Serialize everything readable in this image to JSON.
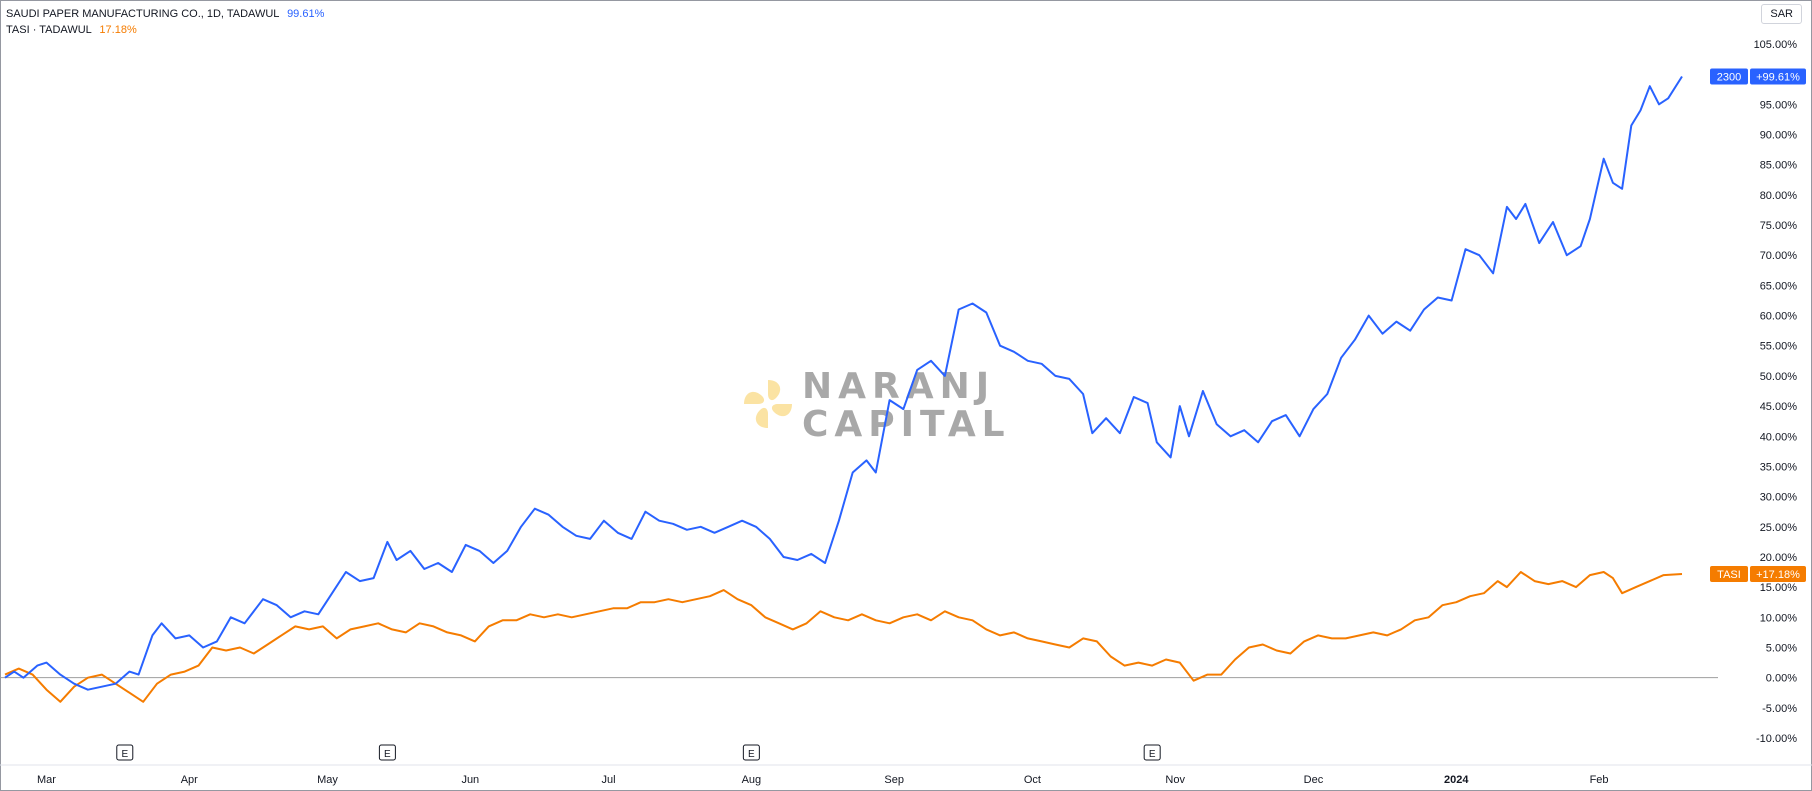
{
  "legend": {
    "row1": {
      "name": "SAUDI PAPER MANUFACTURING CO., 1D, TADAWUL",
      "pct": "99.61%"
    },
    "row2": {
      "name": "TASI · TADAWUL",
      "pct": "17.18%"
    }
  },
  "currency_label": "SAR",
  "watermark": {
    "line1": "NARANJ",
    "line2": "CAPITAL"
  },
  "colors": {
    "series_a": "#2962ff",
    "series_b": "#f57c00",
    "zero_line": "#9e9e9e",
    "logo": "#fbe3a3"
  },
  "earnings_marker_label": "E",
  "chart_data": {
    "type": "line",
    "y_unit": "%",
    "ylim": [
      -10,
      105
    ],
    "y_ticks": [
      "105.00%",
      "100.00%",
      "95.00%",
      "90.00%",
      "85.00%",
      "80.00%",
      "75.00%",
      "70.00%",
      "65.00%",
      "60.00%",
      "55.00%",
      "50.00%",
      "45.00%",
      "40.00%",
      "35.00%",
      "30.00%",
      "25.00%",
      "20.00%",
      "15.00%",
      "10.00%",
      "5.00%",
      "0.00%",
      "-5.00%",
      "-10.00%"
    ],
    "x_range": [
      "2023-02-20",
      "2024-02-19"
    ],
    "x_ticks": [
      {
        "label": "Mar",
        "date": "2023-03-01",
        "bold": false
      },
      {
        "label": "Apr",
        "date": "2023-04-01",
        "bold": false
      },
      {
        "label": "May",
        "date": "2023-05-01",
        "bold": false
      },
      {
        "label": "Jun",
        "date": "2023-06-01",
        "bold": false
      },
      {
        "label": "Jul",
        "date": "2023-07-01",
        "bold": false
      },
      {
        "label": "Aug",
        "date": "2023-08-01",
        "bold": false
      },
      {
        "label": "Sep",
        "date": "2023-09-01",
        "bold": false
      },
      {
        "label": "Oct",
        "date": "2023-10-01",
        "bold": false
      },
      {
        "label": "Nov",
        "date": "2023-11-01",
        "bold": false
      },
      {
        "label": "Dec",
        "date": "2023-12-01",
        "bold": false
      },
      {
        "label": "2024",
        "date": "2024-01-01",
        "bold": true
      },
      {
        "label": "Feb",
        "date": "2024-02-01",
        "bold": false
      }
    ],
    "earnings_dates": [
      "2023-03-18",
      "2023-05-14",
      "2023-08-01",
      "2023-10-27"
    ],
    "series": [
      {
        "name": "2300",
        "badge_value": "+99.61%",
        "last": 99.61,
        "points": [
          [
            "2023-02-20",
            0.0
          ],
          [
            "2023-02-22",
            1.0
          ],
          [
            "2023-02-24",
            0.0
          ],
          [
            "2023-02-27",
            2.0
          ],
          [
            "2023-03-01",
            2.5
          ],
          [
            "2023-03-04",
            0.5
          ],
          [
            "2023-03-07",
            -1.0
          ],
          [
            "2023-03-10",
            -2.0
          ],
          [
            "2023-03-13",
            -1.5
          ],
          [
            "2023-03-16",
            -1.0
          ],
          [
            "2023-03-19",
            1.0
          ],
          [
            "2023-03-21",
            0.5
          ],
          [
            "2023-03-24",
            7.0
          ],
          [
            "2023-03-26",
            9.0
          ],
          [
            "2023-03-29",
            6.5
          ],
          [
            "2023-04-01",
            7.0
          ],
          [
            "2023-04-04",
            5.0
          ],
          [
            "2023-04-07",
            6.0
          ],
          [
            "2023-04-10",
            10.0
          ],
          [
            "2023-04-13",
            9.0
          ],
          [
            "2023-04-17",
            13.0
          ],
          [
            "2023-04-20",
            12.0
          ],
          [
            "2023-04-23",
            10.0
          ],
          [
            "2023-04-26",
            11.0
          ],
          [
            "2023-04-29",
            10.5
          ],
          [
            "2023-05-02",
            14.0
          ],
          [
            "2023-05-05",
            17.5
          ],
          [
            "2023-05-08",
            16.0
          ],
          [
            "2023-05-11",
            16.5
          ],
          [
            "2023-05-14",
            22.5
          ],
          [
            "2023-05-16",
            19.5
          ],
          [
            "2023-05-19",
            21.0
          ],
          [
            "2023-05-22",
            18.0
          ],
          [
            "2023-05-25",
            19.0
          ],
          [
            "2023-05-28",
            17.5
          ],
          [
            "2023-05-31",
            22.0
          ],
          [
            "2023-06-03",
            21.0
          ],
          [
            "2023-06-06",
            19.0
          ],
          [
            "2023-06-09",
            21.0
          ],
          [
            "2023-06-12",
            25.0
          ],
          [
            "2023-06-15",
            28.0
          ],
          [
            "2023-06-18",
            27.0
          ],
          [
            "2023-06-21",
            25.0
          ],
          [
            "2023-06-24",
            23.5
          ],
          [
            "2023-06-27",
            23.0
          ],
          [
            "2023-06-30",
            26.0
          ],
          [
            "2023-07-03",
            24.0
          ],
          [
            "2023-07-06",
            23.0
          ],
          [
            "2023-07-09",
            27.5
          ],
          [
            "2023-07-12",
            26.0
          ],
          [
            "2023-07-15",
            25.5
          ],
          [
            "2023-07-18",
            24.5
          ],
          [
            "2023-07-21",
            25.0
          ],
          [
            "2023-07-24",
            24.0
          ],
          [
            "2023-07-27",
            25.0
          ],
          [
            "2023-07-30",
            26.0
          ],
          [
            "2023-08-02",
            25.0
          ],
          [
            "2023-08-05",
            23.0
          ],
          [
            "2023-08-08",
            20.0
          ],
          [
            "2023-08-11",
            19.5
          ],
          [
            "2023-08-14",
            20.5
          ],
          [
            "2023-08-17",
            19.0
          ],
          [
            "2023-08-20",
            26.0
          ],
          [
            "2023-08-23",
            34.0
          ],
          [
            "2023-08-26",
            36.0
          ],
          [
            "2023-08-28",
            34.0
          ],
          [
            "2023-08-31",
            46.0
          ],
          [
            "2023-09-03",
            44.5
          ],
          [
            "2023-09-06",
            51.0
          ],
          [
            "2023-09-09",
            52.5
          ],
          [
            "2023-09-12",
            50.0
          ],
          [
            "2023-09-15",
            61.0
          ],
          [
            "2023-09-18",
            62.0
          ],
          [
            "2023-09-21",
            60.5
          ],
          [
            "2023-09-24",
            55.0
          ],
          [
            "2023-09-27",
            54.0
          ],
          [
            "2023-09-30",
            52.5
          ],
          [
            "2023-10-03",
            52.0
          ],
          [
            "2023-10-06",
            50.0
          ],
          [
            "2023-10-09",
            49.5
          ],
          [
            "2023-10-12",
            47.0
          ],
          [
            "2023-10-14",
            40.5
          ],
          [
            "2023-10-17",
            43.0
          ],
          [
            "2023-10-20",
            40.5
          ],
          [
            "2023-10-23",
            46.5
          ],
          [
            "2023-10-26",
            45.5
          ],
          [
            "2023-10-28",
            39.0
          ],
          [
            "2023-10-31",
            36.5
          ],
          [
            "2023-11-02",
            45.0
          ],
          [
            "2023-11-04",
            40.0
          ],
          [
            "2023-11-07",
            47.5
          ],
          [
            "2023-11-10",
            42.0
          ],
          [
            "2023-11-13",
            40.0
          ],
          [
            "2023-11-16",
            41.0
          ],
          [
            "2023-11-19",
            39.0
          ],
          [
            "2023-11-22",
            42.5
          ],
          [
            "2023-11-25",
            43.5
          ],
          [
            "2023-11-28",
            40.0
          ],
          [
            "2023-12-01",
            44.5
          ],
          [
            "2023-12-04",
            47.0
          ],
          [
            "2023-12-07",
            53.0
          ],
          [
            "2023-12-10",
            56.0
          ],
          [
            "2023-12-13",
            60.0
          ],
          [
            "2023-12-16",
            57.0
          ],
          [
            "2023-12-19",
            59.0
          ],
          [
            "2023-12-22",
            57.5
          ],
          [
            "2023-12-25",
            61.0
          ],
          [
            "2023-12-28",
            63.0
          ],
          [
            "2023-12-31",
            62.5
          ],
          [
            "2024-01-03",
            71.0
          ],
          [
            "2024-01-06",
            70.0
          ],
          [
            "2024-01-09",
            67.0
          ],
          [
            "2024-01-12",
            78.0
          ],
          [
            "2024-01-14",
            76.0
          ],
          [
            "2024-01-16",
            78.5
          ],
          [
            "2024-01-19",
            72.0
          ],
          [
            "2024-01-22",
            75.5
          ],
          [
            "2024-01-25",
            70.0
          ],
          [
            "2024-01-28",
            71.5
          ],
          [
            "2024-01-30",
            76.0
          ],
          [
            "2024-02-02",
            86.0
          ],
          [
            "2024-02-04",
            82.0
          ],
          [
            "2024-02-06",
            81.0
          ],
          [
            "2024-02-08",
            91.5
          ],
          [
            "2024-02-10",
            94.0
          ],
          [
            "2024-02-12",
            98.0
          ],
          [
            "2024-02-14",
            95.0
          ],
          [
            "2024-02-16",
            96.0
          ],
          [
            "2024-02-19",
            99.61
          ]
        ]
      },
      {
        "name": "TASI",
        "badge_value": "+17.18%",
        "last": 17.18,
        "points": [
          [
            "2023-02-20",
            0.5
          ],
          [
            "2023-02-23",
            1.5
          ],
          [
            "2023-02-26",
            0.5
          ],
          [
            "2023-03-01",
            -2.0
          ],
          [
            "2023-03-04",
            -4.0
          ],
          [
            "2023-03-07",
            -1.5
          ],
          [
            "2023-03-10",
            0.0
          ],
          [
            "2023-03-13",
            0.5
          ],
          [
            "2023-03-16",
            -1.0
          ],
          [
            "2023-03-19",
            -2.5
          ],
          [
            "2023-03-22",
            -4.0
          ],
          [
            "2023-03-25",
            -1.0
          ],
          [
            "2023-03-28",
            0.5
          ],
          [
            "2023-03-31",
            1.0
          ],
          [
            "2023-04-03",
            2.0
          ],
          [
            "2023-04-06",
            5.0
          ],
          [
            "2023-04-09",
            4.5
          ],
          [
            "2023-04-12",
            5.0
          ],
          [
            "2023-04-15",
            4.0
          ],
          [
            "2023-04-18",
            5.5
          ],
          [
            "2023-04-21",
            7.0
          ],
          [
            "2023-04-24",
            8.5
          ],
          [
            "2023-04-27",
            8.0
          ],
          [
            "2023-04-30",
            8.5
          ],
          [
            "2023-05-03",
            6.5
          ],
          [
            "2023-05-06",
            8.0
          ],
          [
            "2023-05-09",
            8.5
          ],
          [
            "2023-05-12",
            9.0
          ],
          [
            "2023-05-15",
            8.0
          ],
          [
            "2023-05-18",
            7.5
          ],
          [
            "2023-05-21",
            9.0
          ],
          [
            "2023-05-24",
            8.5
          ],
          [
            "2023-05-27",
            7.5
          ],
          [
            "2023-05-30",
            7.0
          ],
          [
            "2023-06-02",
            6.0
          ],
          [
            "2023-06-05",
            8.5
          ],
          [
            "2023-06-08",
            9.5
          ],
          [
            "2023-06-11",
            9.5
          ],
          [
            "2023-06-14",
            10.5
          ],
          [
            "2023-06-17",
            10.0
          ],
          [
            "2023-06-20",
            10.5
          ],
          [
            "2023-06-23",
            10.0
          ],
          [
            "2023-06-26",
            10.5
          ],
          [
            "2023-06-29",
            11.0
          ],
          [
            "2023-07-02",
            11.5
          ],
          [
            "2023-07-05",
            11.5
          ],
          [
            "2023-07-08",
            12.5
          ],
          [
            "2023-07-11",
            12.5
          ],
          [
            "2023-07-14",
            13.0
          ],
          [
            "2023-07-17",
            12.5
          ],
          [
            "2023-07-20",
            13.0
          ],
          [
            "2023-07-23",
            13.5
          ],
          [
            "2023-07-26",
            14.5
          ],
          [
            "2023-07-29",
            13.0
          ],
          [
            "2023-08-01",
            12.0
          ],
          [
            "2023-08-04",
            10.0
          ],
          [
            "2023-08-07",
            9.0
          ],
          [
            "2023-08-10",
            8.0
          ],
          [
            "2023-08-13",
            9.0
          ],
          [
            "2023-08-16",
            11.0
          ],
          [
            "2023-08-19",
            10.0
          ],
          [
            "2023-08-22",
            9.5
          ],
          [
            "2023-08-25",
            10.5
          ],
          [
            "2023-08-28",
            9.5
          ],
          [
            "2023-08-31",
            9.0
          ],
          [
            "2023-09-03",
            10.0
          ],
          [
            "2023-09-06",
            10.5
          ],
          [
            "2023-09-09",
            9.5
          ],
          [
            "2023-09-12",
            11.0
          ],
          [
            "2023-09-15",
            10.0
          ],
          [
            "2023-09-18",
            9.5
          ],
          [
            "2023-09-21",
            8.0
          ],
          [
            "2023-09-24",
            7.0
          ],
          [
            "2023-09-27",
            7.5
          ],
          [
            "2023-09-30",
            6.5
          ],
          [
            "2023-10-03",
            6.0
          ],
          [
            "2023-10-06",
            5.5
          ],
          [
            "2023-10-09",
            5.0
          ],
          [
            "2023-10-12",
            6.5
          ],
          [
            "2023-10-15",
            6.0
          ],
          [
            "2023-10-18",
            3.5
          ],
          [
            "2023-10-21",
            2.0
          ],
          [
            "2023-10-24",
            2.5
          ],
          [
            "2023-10-27",
            2.0
          ],
          [
            "2023-10-30",
            3.0
          ],
          [
            "2023-11-02",
            2.5
          ],
          [
            "2023-11-05",
            -0.5
          ],
          [
            "2023-11-08",
            0.5
          ],
          [
            "2023-11-11",
            0.5
          ],
          [
            "2023-11-14",
            3.0
          ],
          [
            "2023-11-17",
            5.0
          ],
          [
            "2023-11-20",
            5.5
          ],
          [
            "2023-11-23",
            4.5
          ],
          [
            "2023-11-26",
            4.0
          ],
          [
            "2023-11-29",
            6.0
          ],
          [
            "2023-12-02",
            7.0
          ],
          [
            "2023-12-05",
            6.5
          ],
          [
            "2023-12-08",
            6.5
          ],
          [
            "2023-12-11",
            7.0
          ],
          [
            "2023-12-14",
            7.5
          ],
          [
            "2023-12-17",
            7.0
          ],
          [
            "2023-12-20",
            8.0
          ],
          [
            "2023-12-23",
            9.5
          ],
          [
            "2023-12-26",
            10.0
          ],
          [
            "2023-12-29",
            12.0
          ],
          [
            "2024-01-01",
            12.5
          ],
          [
            "2024-01-04",
            13.5
          ],
          [
            "2024-01-07",
            14.0
          ],
          [
            "2024-01-10",
            16.0
          ],
          [
            "2024-01-12",
            15.0
          ],
          [
            "2024-01-15",
            17.5
          ],
          [
            "2024-01-18",
            16.0
          ],
          [
            "2024-01-21",
            15.5
          ],
          [
            "2024-01-24",
            16.0
          ],
          [
            "2024-01-27",
            15.0
          ],
          [
            "2024-01-30",
            17.0
          ],
          [
            "2024-02-02",
            17.5
          ],
          [
            "2024-02-04",
            16.5
          ],
          [
            "2024-02-06",
            14.0
          ],
          [
            "2024-02-09",
            15.0
          ],
          [
            "2024-02-12",
            16.0
          ],
          [
            "2024-02-15",
            17.0
          ],
          [
            "2024-02-19",
            17.18
          ]
        ]
      }
    ]
  }
}
